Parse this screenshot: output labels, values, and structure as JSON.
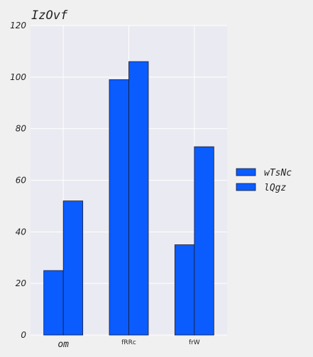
{
  "chart_data": {
    "type": "bar",
    "title": "IzOvf",
    "xlabel": "",
    "ylabel": "",
    "categories": [
      "om",
      "fRRc",
      "frW"
    ],
    "series": [
      {
        "name": "wTsNc",
        "values": [
          25,
          99,
          35
        ]
      },
      {
        "name": "lQgz",
        "values": [
          52,
          106,
          73
        ]
      }
    ],
    "ylim": [
      0,
      120
    ],
    "yticks": [
      0,
      20,
      40,
      60,
      80,
      100,
      120
    ],
    "grid": true,
    "legend_position": "right",
    "colors": {
      "bar": "#0a5cff",
      "plot_bg": "#eaeaf2",
      "page_bg": "#f0f0f0",
      "grid": "#ffffff"
    }
  }
}
